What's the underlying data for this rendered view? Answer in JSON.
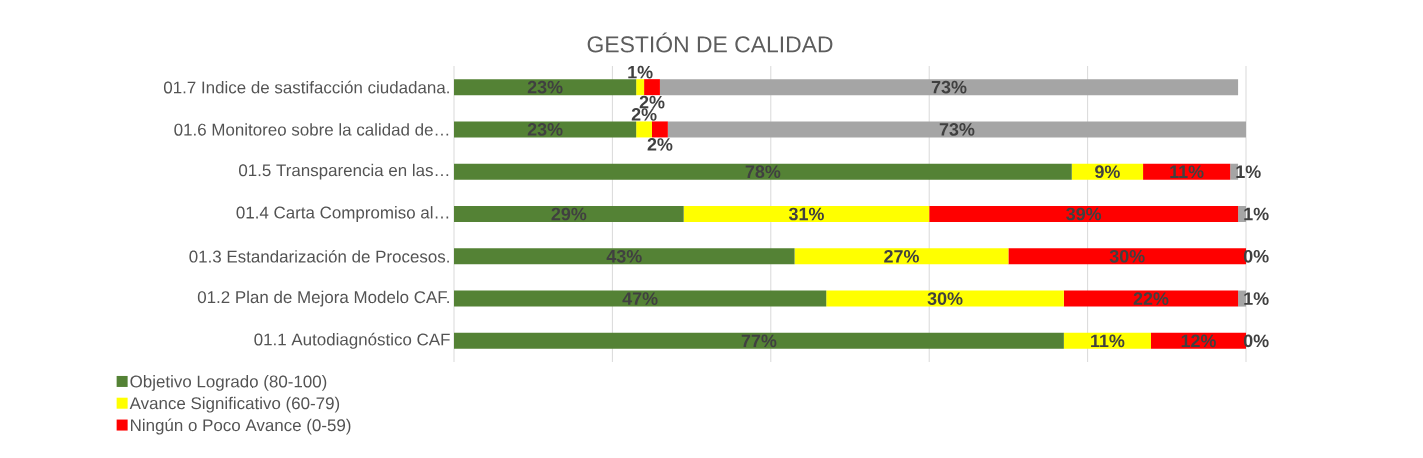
{
  "chart_data": {
    "type": "bar",
    "orientation": "horizontal",
    "stacked": true,
    "title": "GESTIÓN DE CALIDAD",
    "categories": [
      "01.7 Indice de sastifacción ciudadana.",
      "01.6 Monitoreo sobre la calidad de…",
      "01.5 Transparencia en las…",
      "01.4 Carta Compromiso al…",
      "01.3 Estandarización de Procesos.",
      "01.2 Plan de Mejora Modelo CAF.",
      "01.1  Autodiagnóstico CAF"
    ],
    "series": [
      {
        "name": "Objetivo Logrado (80-100)",
        "color": "#548235",
        "values": [
          23,
          23,
          78,
          29,
          43,
          47,
          77
        ],
        "value_labels": [
          "23%",
          "23%",
          "78%",
          "29%",
          "43%",
          "47%",
          "77%"
        ]
      },
      {
        "name": "Avance Significativo (60-79)",
        "color": "#ffff00",
        "values": [
          1,
          2,
          9,
          31,
          27,
          30,
          11
        ],
        "value_labels": [
          "1%",
          "2%",
          "9%",
          "31%",
          "27%",
          "30%",
          "11%"
        ]
      },
      {
        "name": "Ningún o Poco Avance (0-59)",
        "color": "#ff0000",
        "values": [
          2,
          2,
          11,
          39,
          30,
          22,
          12
        ],
        "value_labels": [
          "2%",
          "2%",
          "11%",
          "39%",
          "30%",
          "22%",
          "12%"
        ]
      },
      {
        "color": "#a5a5a5",
        "values": [
          73,
          73,
          1,
          1,
          0,
          1,
          0
        ],
        "value_labels": [
          "73%",
          "73%",
          "1%",
          "1%",
          "0%",
          "1%",
          "0%"
        ]
      }
    ],
    "xlim": [
      0,
      100
    ],
    "xticks": [
      {
        "value": 0,
        "label": null
      },
      {
        "value": 20,
        "label": null
      },
      {
        "value": 40,
        "label": null
      },
      {
        "value": 60,
        "label": null
      },
      {
        "value": 80,
        "label": null
      },
      {
        "value": 100,
        "label": null
      }
    ],
    "grid": "x",
    "legend": "bottom",
    "tick_labels": "y"
  }
}
